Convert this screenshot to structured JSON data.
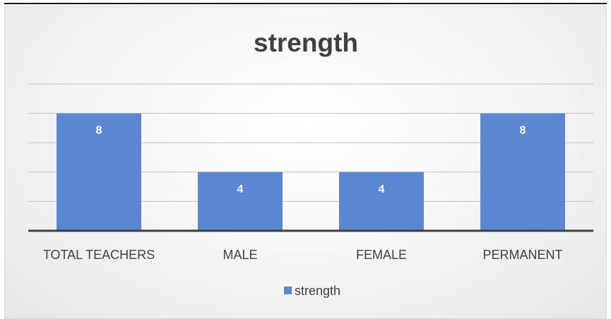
{
  "colors": {
    "bar": "#5b86d1",
    "gridline": "#bfbfbf",
    "axis": "#404040",
    "text": "#404040",
    "cut_text": "#1f4ed8"
  },
  "chart_data": {
    "type": "bar",
    "title": "strength",
    "categories": [
      "TOTAL TEACHERS",
      "MALE",
      "FEMALE",
      "PERMANENT"
    ],
    "series": [
      {
        "name": "strength",
        "values": [
          8,
          4,
          4,
          8
        ]
      }
    ],
    "ylim": [
      0,
      10
    ],
    "grid": true,
    "data_labels": true,
    "legend": "bottom",
    "xlabel": "",
    "ylabel": ""
  }
}
